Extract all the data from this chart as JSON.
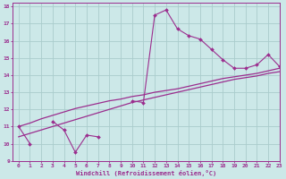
{
  "xlabel": "Windchill (Refroidissement éolien,°C)",
  "ylabel": "",
  "x_data": [
    0,
    1,
    2,
    3,
    4,
    5,
    6,
    7,
    8,
    9,
    10,
    11,
    12,
    13,
    14,
    15,
    16,
    17,
    18,
    19,
    20,
    21,
    22,
    23
  ],
  "y_main": [
    11.0,
    10.0,
    null,
    11.3,
    10.8,
    9.5,
    10.5,
    10.4,
    null,
    null,
    12.5,
    12.4,
    17.5,
    17.8,
    16.7,
    16.3,
    16.1,
    15.5,
    14.9,
    14.4,
    14.4,
    14.6,
    15.2,
    14.5
  ],
  "y_line1": [
    11.0,
    11.2,
    11.45,
    11.65,
    11.85,
    12.05,
    12.2,
    12.35,
    12.5,
    12.6,
    12.75,
    12.85,
    13.0,
    13.1,
    13.2,
    13.35,
    13.5,
    13.65,
    13.8,
    13.9,
    14.0,
    14.1,
    14.25,
    14.4
  ],
  "y_line2": [
    10.4,
    10.6,
    10.8,
    11.0,
    11.2,
    11.4,
    11.6,
    11.8,
    12.0,
    12.2,
    12.4,
    12.55,
    12.7,
    12.85,
    13.0,
    13.15,
    13.3,
    13.45,
    13.6,
    13.75,
    13.85,
    13.95,
    14.1,
    14.2
  ],
  "line_color": "#9b2d8e",
  "bg_color": "#cce8e8",
  "grid_color": "#aacccc",
  "xlim": [
    -0.5,
    23
  ],
  "ylim": [
    9,
    18.2
  ],
  "yticks": [
    9,
    10,
    11,
    12,
    13,
    14,
    15,
    16,
    17,
    18
  ],
  "xticks": [
    0,
    1,
    2,
    3,
    4,
    5,
    6,
    7,
    8,
    9,
    10,
    11,
    12,
    13,
    14,
    15,
    16,
    17,
    18,
    19,
    20,
    21,
    22,
    23
  ]
}
